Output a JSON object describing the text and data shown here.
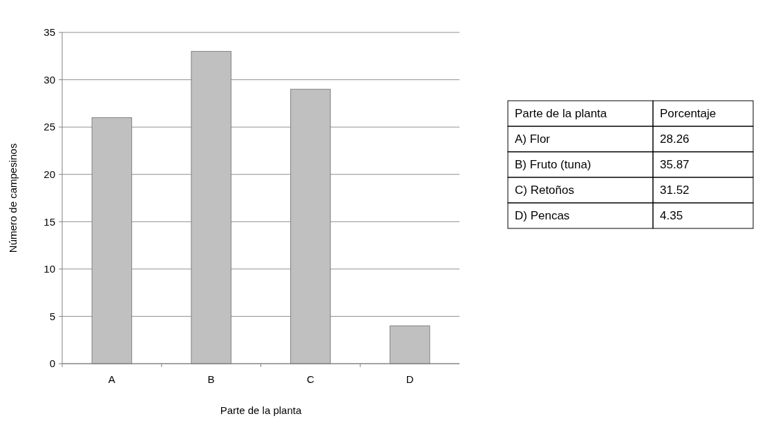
{
  "chart_data": {
    "type": "bar",
    "xlabel": "Parte de la planta",
    "ylabel": "Número de campesinos",
    "categories": [
      "A",
      "B",
      "C",
      "D"
    ],
    "values": [
      26,
      33,
      29,
      4
    ],
    "color": "#c0c0c0",
    "ylim": [
      0,
      35
    ],
    "yticks": [
      0,
      5,
      10,
      15,
      20,
      25,
      30,
      35
    ],
    "grid": "y",
    "annotations": [
      "Parte de la planta",
      "Porcentaje",
      "A) Flor",
      "28.26",
      "B)  Fruto (tuna)",
      "35.87",
      "C)  Retoños",
      "31.52",
      "D)  Pencas",
      "4.35"
    ]
  }
}
